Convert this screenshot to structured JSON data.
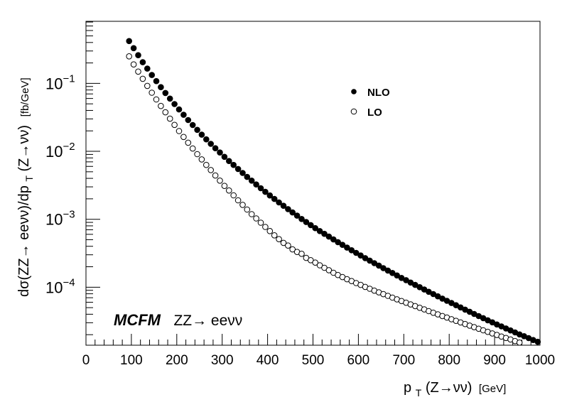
{
  "chart_data": {
    "type": "scatter",
    "log_y": true,
    "xlim": [
      0,
      1000
    ],
    "ylim": [
      1.4e-05,
      0.82
    ],
    "x_ticks": [
      0,
      100,
      200,
      300,
      400,
      500,
      600,
      700,
      800,
      900,
      1000
    ],
    "x_tick_labels": [
      "0",
      "100",
      "200",
      "300",
      "400",
      "500",
      "600",
      "700",
      "800",
      "900",
      "1000"
    ],
    "y_ticks": [
      0.1,
      0.01,
      0.001,
      0.0001
    ],
    "y_tick_labels": [
      {
        "base": "10",
        "exp": "−1"
      },
      {
        "base": "10",
        "exp": "−2"
      },
      {
        "base": "10",
        "exp": "−3"
      },
      {
        "base": "10",
        "exp": "−4"
      }
    ],
    "xlabel": {
      "main": "p",
      "sub": "T",
      "rest": "(Z→νν)",
      "unit": "[GeV]"
    },
    "ylabel": {
      "pre": "dσ(ZZ→ eeνν)/dp",
      "sub": "T",
      "post": "(Z→νν)",
      "unit": "[fb/GeV]"
    },
    "annotation": {
      "brand": "MCFM",
      "process": "ZZ→ eeνν"
    },
    "legend": [
      {
        "label": "NLO",
        "marker": "filled-circle"
      },
      {
        "label": "LO",
        "marker": "open-circle"
      }
    ],
    "series": [
      {
        "name": "NLO",
        "marker": "filled",
        "x": [
          95,
          105,
          115,
          125,
          135,
          145,
          155,
          165,
          175,
          185,
          195,
          205,
          215,
          225,
          235,
          245,
          255,
          265,
          275,
          285,
          295,
          305,
          315,
          325,
          335,
          345,
          355,
          365,
          375,
          385,
          395,
          405,
          415,
          425,
          435,
          445,
          455,
          465,
          475,
          485,
          495,
          505,
          515,
          525,
          535,
          545,
          555,
          565,
          575,
          585,
          595,
          605,
          615,
          625,
          635,
          645,
          655,
          665,
          675,
          685,
          695,
          705,
          715,
          725,
          735,
          745,
          755,
          765,
          775,
          785,
          795,
          805,
          815,
          825,
          835,
          845,
          855,
          865,
          875,
          885,
          895,
          905,
          915,
          925,
          935,
          945,
          955,
          965,
          975,
          985,
          995
        ],
        "y": [
          0.42,
          0.33,
          0.26,
          0.205,
          0.165,
          0.133,
          0.108,
          0.088,
          0.0722,
          0.0597,
          0.0496,
          0.0413,
          0.0345,
          0.0289,
          0.0244,
          0.0207,
          0.0176,
          0.015,
          0.0129,
          0.0111,
          0.0096,
          0.0083,
          0.0072,
          0.0063,
          0.0055,
          0.0048,
          0.0042,
          0.0037,
          0.00325,
          0.00286,
          0.00253,
          0.00224,
          0.00199,
          0.00177,
          0.00158,
          0.00141,
          0.00126,
          0.00113,
          0.00101,
          0.00091,
          0.00082,
          0.00074,
          0.00067,
          0.00061,
          0.000555,
          0.000505,
          0.00046,
          0.00042,
          0.000383,
          0.00035,
          0.00032,
          0.000293,
          0.000268,
          0.000246,
          0.000226,
          0.000208,
          0.000191,
          0.000176,
          0.000162,
          0.000149,
          0.000137,
          0.000127,
          0.000117,
          0.000108,
          0.0001,
          9.25e-05,
          8.56e-05,
          7.92e-05,
          7.34e-05,
          6.8e-05,
          6.3e-05,
          5.85e-05,
          5.43e-05,
          5.04e-05,
          4.68e-05,
          4.35e-05,
          4.04e-05,
          3.76e-05,
          3.5e-05,
          3.26e-05,
          3.04e-05,
          2.83e-05,
          2.65e-05,
          2.47e-05,
          2.31e-05,
          2.16e-05,
          2.02e-05,
          1.9e-05,
          1.78e-05,
          1.67e-05,
          1.57e-05
        ]
      },
      {
        "name": "LO",
        "marker": "open",
        "x": [
          95,
          105,
          115,
          125,
          135,
          145,
          155,
          165,
          175,
          185,
          195,
          205,
          215,
          225,
          235,
          245,
          255,
          265,
          275,
          285,
          295,
          305,
          315,
          325,
          335,
          345,
          355,
          365,
          375,
          385,
          395,
          405,
          415,
          425,
          435,
          445,
          455,
          465,
          475,
          485,
          495,
          505,
          515,
          525,
          535,
          545,
          555,
          565,
          575,
          585,
          595,
          605,
          615,
          625,
          635,
          645,
          655,
          665,
          675,
          685,
          695,
          705,
          715,
          725,
          735,
          745,
          755,
          765,
          775,
          785,
          795,
          805,
          815,
          825,
          835,
          845,
          855,
          865,
          875,
          885,
          895,
          905,
          915,
          925,
          935,
          945,
          955
        ],
        "y": [
          0.25,
          0.19,
          0.149,
          0.117,
          0.092,
          0.073,
          0.058,
          0.0465,
          0.0375,
          0.0302,
          0.0245,
          0.0199,
          0.0163,
          0.0134,
          0.011,
          0.0091,
          0.0076,
          0.0063,
          0.0053,
          0.0044,
          0.0037,
          0.0031,
          0.00265,
          0.00225,
          0.0019,
          0.00163,
          0.00139,
          0.00119,
          0.00103,
          0.00089,
          0.00077,
          0.00067,
          0.00058,
          0.00051,
          0.00045,
          0.00041,
          0.00036,
          0.00033,
          0.00031,
          0.00027,
          0.00025,
          0.00023,
          0.00021,
          0.000193,
          0.000178,
          0.000163,
          0.000151,
          0.000141,
          0.000131,
          0.000123,
          0.000115,
          0.000108,
          0.000101,
          9.5e-05,
          8.9e-05,
          8.4e-05,
          7.9e-05,
          7.46e-05,
          7.03e-05,
          6.63e-05,
          6.26e-05,
          5.91e-05,
          5.58e-05,
          5.27e-05,
          4.98e-05,
          4.71e-05,
          4.45e-05,
          4.21e-05,
          3.98e-05,
          3.77e-05,
          3.57e-05,
          3.38e-05,
          3.2e-05,
          3.03e-05,
          2.87e-05,
          2.72e-05,
          2.58e-05,
          2.45e-05,
          2.32e-05,
          2.2e-05,
          2.09e-05,
          1.98e-05,
          1.88e-05,
          1.79e-05,
          1.7e-05,
          1.61e-05,
          1.53e-05
        ]
      }
    ]
  }
}
